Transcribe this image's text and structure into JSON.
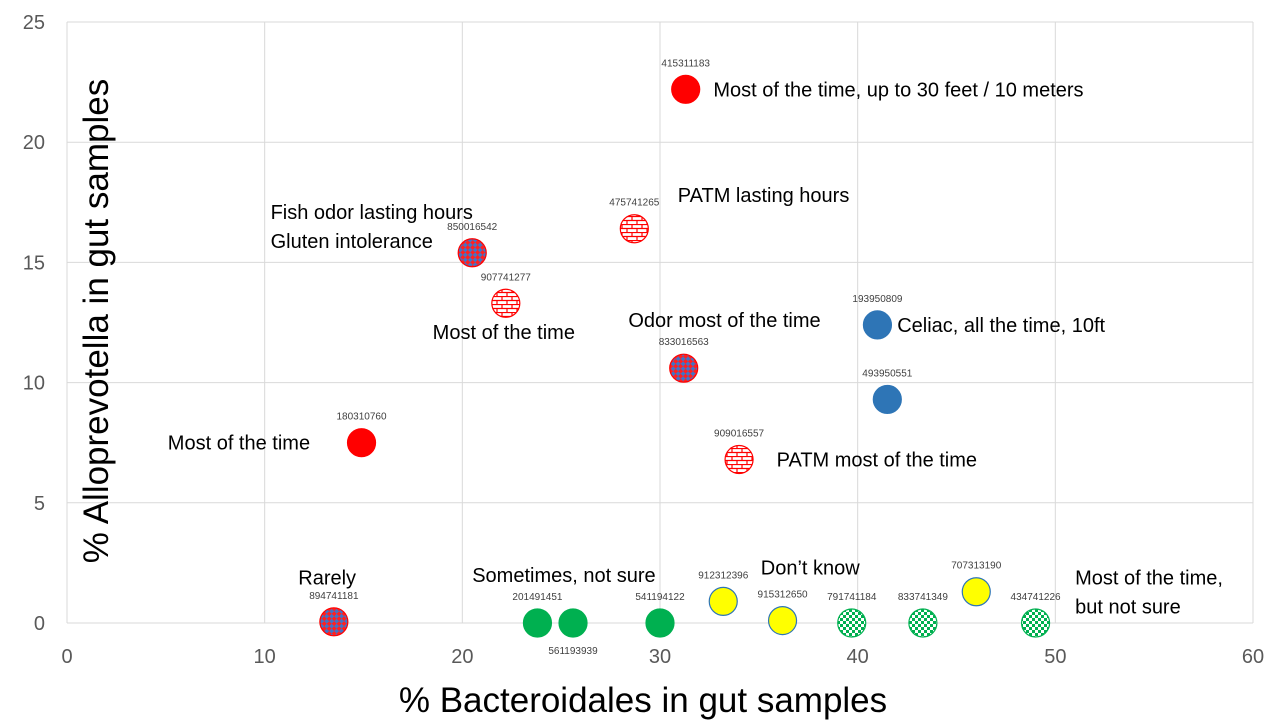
{
  "chart_data": {
    "type": "scatter",
    "xlabel": "% Bacteroidales in gut samples",
    "ylabel": "% Alloprevotella in gut samples",
    "xlim": [
      0,
      60
    ],
    "ylim": [
      0,
      25
    ],
    "x_ticks": [
      "0",
      "10",
      "20",
      "30",
      "40",
      "50",
      "60"
    ],
    "y_ticks": [
      "0",
      "5",
      "10",
      "15",
      "20",
      "25"
    ],
    "grid": true,
    "legend": "none",
    "colors": {
      "red": "#ff0000",
      "blue": "#2e75b6",
      "purple_red": "#ff0000",
      "purple_blue": "#4472c4",
      "green": "#00b050",
      "yellow": "#ffff00",
      "brick": "#ff0000"
    },
    "points": [
      {
        "id": "415311183",
        "x": 31.3,
        "y": 22.2,
        "style": "red"
      },
      {
        "id": "475741265",
        "x": 28.7,
        "y": 16.4,
        "style": "brick"
      },
      {
        "id": "850016542",
        "x": 20.5,
        "y": 15.4,
        "style": "diamond"
      },
      {
        "id": "907741277",
        "x": 22.2,
        "y": 13.3,
        "style": "brick"
      },
      {
        "id": "193950809",
        "x": 41.0,
        "y": 12.4,
        "style": "blue"
      },
      {
        "id": "833016563",
        "x": 31.2,
        "y": 10.6,
        "style": "diamond"
      },
      {
        "id": "493950551",
        "x": 41.5,
        "y": 9.3,
        "style": "blue"
      },
      {
        "id": "180310760",
        "x": 14.9,
        "y": 7.5,
        "style": "red"
      },
      {
        "id": "909016557",
        "x": 34.0,
        "y": 6.8,
        "style": "brick"
      },
      {
        "id": "894741181",
        "x": 13.5,
        "y": 0.05,
        "style": "diamond"
      },
      {
        "id": "201491451",
        "x": 23.8,
        "y": 0.0,
        "style": "green"
      },
      {
        "id": "561193939",
        "x": 25.6,
        "y": 0.0,
        "style": "green"
      },
      {
        "id": "541194122",
        "x": 30.0,
        "y": 0.0,
        "style": "green"
      },
      {
        "id": "912312396",
        "x": 33.2,
        "y": 0.9,
        "style": "yellow"
      },
      {
        "id": "915312650",
        "x": 36.2,
        "y": 0.1,
        "style": "yellow"
      },
      {
        "id": "791741184",
        "x": 39.7,
        "y": 0.0,
        "style": "checker"
      },
      {
        "id": "833741349",
        "x": 43.3,
        "y": 0.0,
        "style": "checker"
      },
      {
        "id": "707313190",
        "x": 46.0,
        "y": 1.3,
        "style": "yellow"
      },
      {
        "id": "434741226",
        "x": 49.0,
        "y": 0.0,
        "style": "checker"
      }
    ],
    "annotations": [
      {
        "lines": [
          "Most of the time, up to 30 feet / 10 meters"
        ],
        "x": 32.7,
        "y": 22.2,
        "anchor": "start"
      },
      {
        "lines": [
          "PATM lasting hours"
        ],
        "x": 30.9,
        "y": 17.8,
        "anchor": "start"
      },
      {
        "lines": [
          "Fish odor lasting hours",
          "Gluten intolerance"
        ],
        "x": 10.3,
        "y": 17.1,
        "anchor": "start"
      },
      {
        "lines": [
          "Most of the time"
        ],
        "x": 18.5,
        "y": 12.1,
        "anchor": "start"
      },
      {
        "lines": [
          "Odor most of the time"
        ],
        "x": 28.4,
        "y": 12.6,
        "anchor": "start"
      },
      {
        "lines": [
          "Celiac, all the time, 10ft"
        ],
        "x": 42.0,
        "y": 12.4,
        "anchor": "start"
      },
      {
        "lines": [
          "Most of the time"
        ],
        "x": 5.1,
        "y": 7.5,
        "anchor": "start"
      },
      {
        "lines": [
          "PATM most of the time"
        ],
        "x": 35.9,
        "y": 6.8,
        "anchor": "start"
      },
      {
        "lines": [
          "Rarely"
        ],
        "x": 11.7,
        "y": 1.9,
        "anchor": "start"
      },
      {
        "lines": [
          "Sometimes, not sure"
        ],
        "x": 20.5,
        "y": 2.0,
        "anchor": "start"
      },
      {
        "lines": [
          "Don’t know"
        ],
        "x": 35.1,
        "y": 2.3,
        "anchor": "start"
      },
      {
        "lines": [
          "Most of the time,",
          "but not sure"
        ],
        "x": 51.0,
        "y": 1.9,
        "anchor": "start"
      }
    ]
  }
}
